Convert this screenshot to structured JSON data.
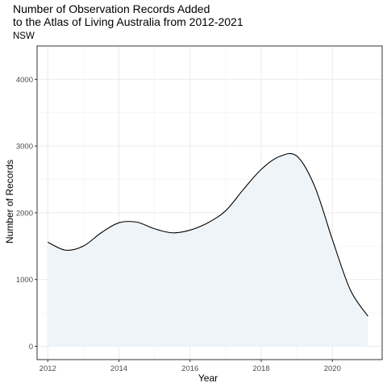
{
  "chart_data": {
    "type": "area",
    "title_line1": "Number of Observation Records Added",
    "title_line2": "to the Atlas of Living Australia from 2012-2021",
    "subtitle": "NSW",
    "xlabel": "Year",
    "ylabel": "Number of Records",
    "xlim": [
      2011.7,
      2021.4
    ],
    "ylim": [
      -200,
      4500
    ],
    "x_ticks": [
      2012,
      2014,
      2016,
      2018,
      2020
    ],
    "y_ticks": [
      0,
      1000,
      2000,
      3000,
      4000
    ],
    "grid": true,
    "x": [
      2012,
      2012.5,
      2013,
      2013.5,
      2014,
      2014.5,
      2015,
      2015.5,
      2016,
      2016.5,
      2017,
      2017.5,
      2018,
      2018.5,
      2019,
      2019.5,
      2020,
      2020.5,
      2021
    ],
    "y": [
      1560,
      1440,
      1500,
      1700,
      1850,
      1860,
      1760,
      1700,
      1740,
      1850,
      2030,
      2350,
      2650,
      2840,
      2850,
      2400,
      1600,
      850,
      450
    ],
    "line_color": "#000000",
    "fill_color": "#eef4f8"
  }
}
